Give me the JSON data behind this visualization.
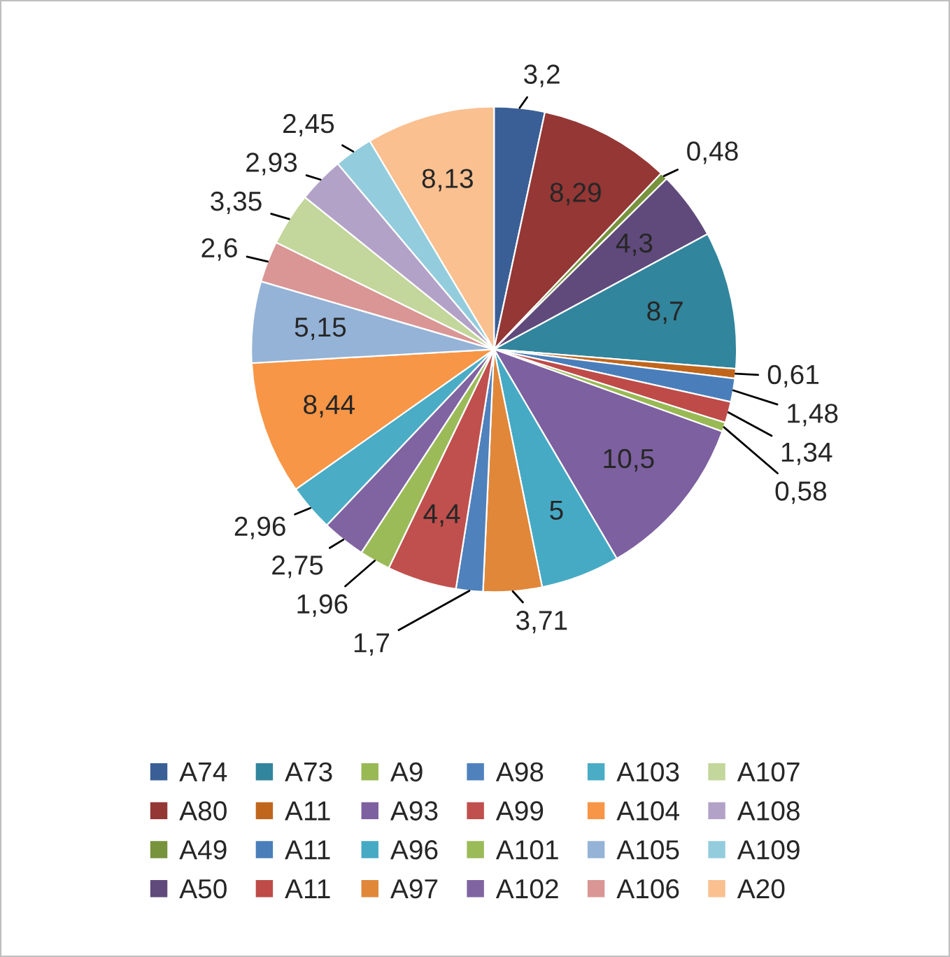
{
  "chart_data": {
    "type": "pie",
    "categories": [
      "A74",
      "A80",
      "A49",
      "A50",
      "A73",
      "A11",
      "A11",
      "A11",
      "A9",
      "A93",
      "A96",
      "A97",
      "A98",
      "A99",
      "A101",
      "A102",
      "A103",
      "A104",
      "A105",
      "A106",
      "A107",
      "A108",
      "A109",
      "A20"
    ],
    "values": [
      3.2,
      8.29,
      0.48,
      4.3,
      8.7,
      0.61,
      1.48,
      1.34,
      0.58,
      10.5,
      5,
      3.71,
      1.7,
      4.4,
      1.96,
      2.75,
      2.96,
      8.44,
      5.15,
      2.6,
      3.35,
      2.93,
      2.45,
      8.13
    ],
    "value_labels": [
      "3,2",
      "8,29",
      "0,48",
      "4,3",
      "8,7",
      "0,61",
      "1,48",
      "1,34",
      "0,58",
      "10,5",
      "5",
      "3,71",
      "1,7",
      "4,4",
      "1,96",
      "2,75",
      "2,96",
      "8,44",
      "5,15",
      "2,6",
      "3,35",
      "2,93",
      "2,45",
      "8,13"
    ],
    "colors": [
      "#3a5f96",
      "#953735",
      "#77933c",
      "#5f4a7b",
      "#31859c",
      "#c0661c",
      "#4a7ebb",
      "#be4b48",
      "#98b954",
      "#7d60a0",
      "#46aac5",
      "#e0873a",
      "#4f81bd",
      "#c0504d",
      "#9bbb59",
      "#8064a2",
      "#4bacc6",
      "#f79646",
      "#95b3d7",
      "#d99694",
      "#c3d69b",
      "#b3a2c7",
      "#93cddd",
      "#fac090"
    ],
    "legend": "bottom"
  }
}
